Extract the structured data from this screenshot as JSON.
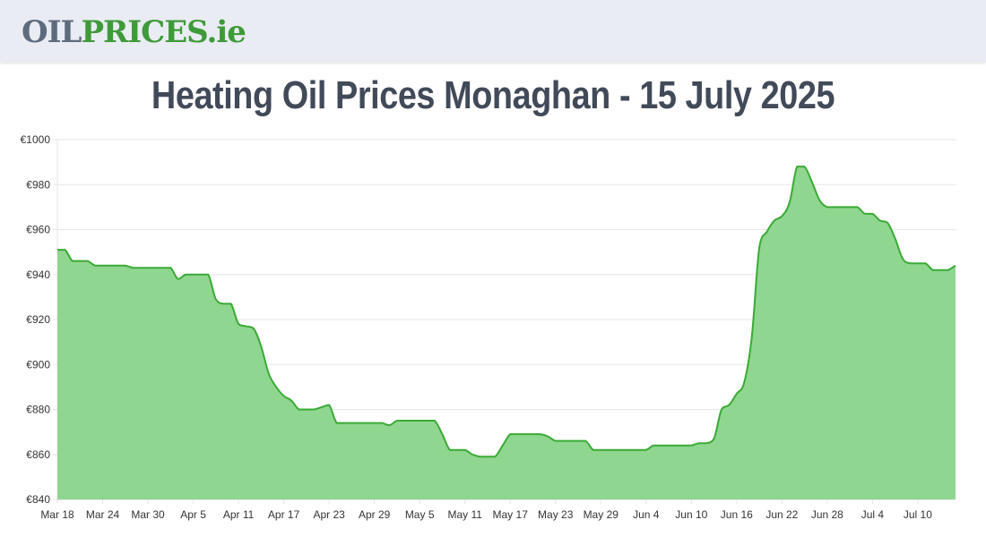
{
  "site": {
    "logo_part1": "OIL",
    "logo_part2": "PRICES",
    "logo_part3": ".ie"
  },
  "colors": {
    "accent": "#3f9a3a",
    "area_fill": "#8fd690",
    "line": "#3aaa35"
  },
  "chart_data": {
    "type": "area",
    "title": "Heating Oil Prices Monaghan - 15 July 2025",
    "xlabel": "",
    "ylabel": "",
    "ylim": [
      840,
      1000
    ],
    "y_ticks": [
      "€840",
      "€860",
      "€880",
      "€900",
      "€920",
      "€940",
      "€960",
      "€980",
      "€1000"
    ],
    "x_ticks": [
      "Mar 18",
      "Mar 24",
      "Mar 30",
      "Apr 5",
      "Apr 11",
      "Apr 17",
      "Apr 23",
      "Apr 29",
      "May 5",
      "May 11",
      "May 17",
      "May 23",
      "May 29",
      "Jun 4",
      "Jun 10",
      "Jun 16",
      "Jun 22",
      "Jun 28",
      "Jul 4",
      "Jul 10"
    ],
    "grid": true,
    "legend": "none",
    "series": [
      {
        "x": [
          "Mar 18",
          "Mar 19",
          "Mar 20",
          "Mar 21",
          "Mar 22",
          "Mar 23",
          "Mar 24",
          "Mar 25",
          "Mar 26",
          "Mar 27",
          "Mar 28",
          "Mar 29",
          "Mar 30",
          "Mar 31",
          "Apr 1",
          "Apr 2",
          "Apr 3",
          "Apr 4",
          "Apr 5",
          "Apr 6",
          "Apr 7",
          "Apr 8",
          "Apr 9",
          "Apr 10",
          "Apr 11",
          "Apr 12",
          "Apr 13",
          "Apr 14",
          "Apr 15",
          "Apr 16",
          "Apr 17",
          "Apr 18",
          "Apr 19",
          "Apr 20",
          "Apr 21",
          "Apr 22",
          "Apr 23",
          "Apr 24",
          "Apr 25",
          "Apr 26",
          "Apr 27",
          "Apr 28",
          "Apr 29",
          "Apr 30",
          "May 1",
          "May 2",
          "May 3",
          "May 4",
          "May 5",
          "May 6",
          "May 7",
          "May 8",
          "May 9",
          "May 10",
          "May 11",
          "May 12",
          "May 13",
          "May 14",
          "May 15",
          "May 16",
          "May 17",
          "May 18",
          "May 19",
          "May 20",
          "May 21",
          "May 22",
          "May 23",
          "May 24",
          "May 25",
          "May 26",
          "May 27",
          "May 28",
          "May 29",
          "May 30",
          "May 31",
          "Jun 1",
          "Jun 2",
          "Jun 3",
          "Jun 4",
          "Jun 5",
          "Jun 6",
          "Jun 7",
          "Jun 8",
          "Jun 9",
          "Jun 10",
          "Jun 11",
          "Jun 12",
          "Jun 13",
          "Jun 14",
          "Jun 15",
          "Jun 16",
          "Jun 17",
          "Jun 18",
          "Jun 19",
          "Jun 20",
          "Jun 21",
          "Jun 22",
          "Jun 23",
          "Jun 24",
          "Jun 25",
          "Jun 26",
          "Jun 27",
          "Jun 28",
          "Jun 29",
          "Jun 30",
          "Jul 1",
          "Jul 2",
          "Jul 3",
          "Jul 4",
          "Jul 5",
          "Jul 6",
          "Jul 7",
          "Jul 8",
          "Jul 9",
          "Jul 10",
          "Jul 11",
          "Jul 12",
          "Jul 13",
          "Jul 14",
          "Jul 15"
        ],
        "values": [
          951,
          951,
          946,
          946,
          946,
          944,
          944,
          944,
          944,
          944,
          943,
          943,
          943,
          943,
          943,
          943,
          938,
          940,
          940,
          940,
          940,
          929,
          927,
          927,
          918,
          917,
          916,
          908,
          896,
          890,
          886,
          884,
          880,
          880,
          880,
          881,
          882,
          874,
          874,
          874,
          874,
          874,
          874,
          874,
          873,
          875,
          875,
          875,
          875,
          875,
          875,
          869,
          862,
          862,
          862,
          860,
          859,
          859,
          859,
          864,
          869,
          869,
          869,
          869,
          869,
          868,
          866,
          866,
          866,
          866,
          866,
          862,
          862,
          862,
          862,
          862,
          862,
          862,
          862,
          864,
          864,
          864,
          864,
          864,
          864,
          865,
          865,
          867,
          880,
          882,
          887,
          892,
          912,
          952,
          959,
          964,
          966,
          972,
          988,
          988,
          981,
          973,
          970,
          970,
          970,
          970,
          970,
          967,
          967,
          964,
          963,
          956,
          947,
          945,
          945,
          945,
          942,
          942,
          942,
          944
        ]
      }
    ]
  }
}
